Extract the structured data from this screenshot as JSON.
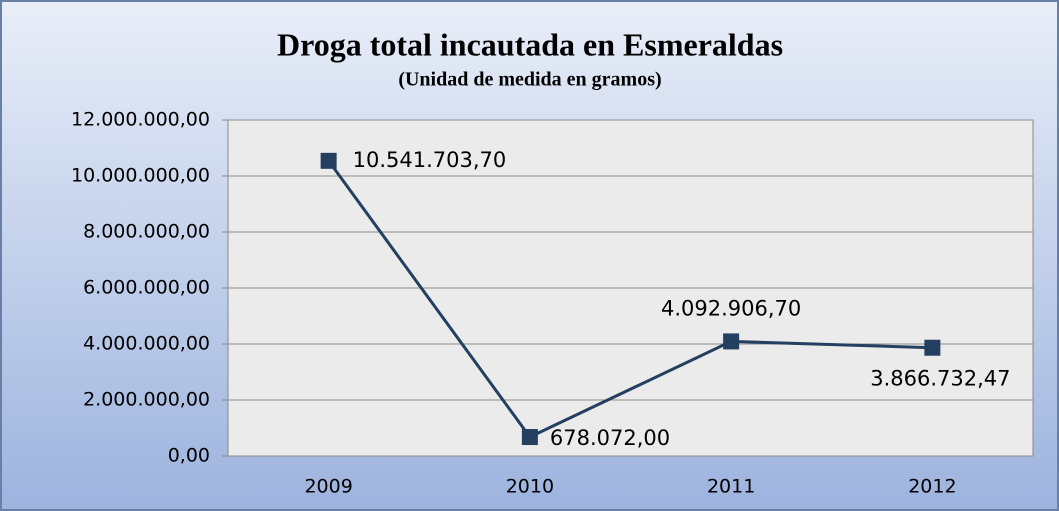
{
  "chart_data": {
    "type": "line",
    "title": "Droga total incautada en Esmeraldas",
    "subtitle": "(Unidad de medida en gramos)",
    "categories": [
      "2009",
      "2010",
      "2011",
      "2012"
    ],
    "values": [
      10541703.7,
      678072,
      4092906.7,
      3866732.47
    ],
    "value_labels": [
      "10.541.703,70",
      "678.072,00",
      "4.092.906,70",
      "3.866.732,47"
    ],
    "color": "#243f60",
    "ylim": [
      0,
      12000000
    ],
    "yticks": [
      {
        "value": 0,
        "label": "0,00"
      },
      {
        "value": 2000000,
        "label": "2.000.000,00"
      },
      {
        "value": 4000000,
        "label": "4.000.000,00"
      },
      {
        "value": 6000000,
        "label": "6.000.000,00"
      },
      {
        "value": 8000000,
        "label": "8.000.000,00"
      },
      {
        "value": 10000000,
        "label": "10.000.000,00"
      },
      {
        "value": 12000000,
        "label": "12.000.000,00"
      }
    ],
    "grid": true
  }
}
